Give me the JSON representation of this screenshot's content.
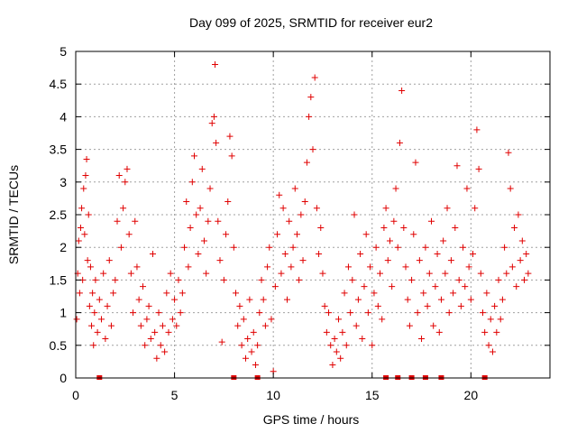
{
  "chart_data": {
    "type": "scatter",
    "title": "Day 099 of 2025, SRMTID for receiver eur2",
    "xlabel": "GPS time / hours",
    "ylabel": "SRMTID / TECUs",
    "xlim": [
      0,
      24
    ],
    "ylim": [
      0,
      5
    ],
    "xticks": [
      "0",
      "5",
      "10",
      "15",
      "20"
    ],
    "xtick_values": [
      0,
      5,
      10,
      15,
      20
    ],
    "yticks": [
      "0",
      "0.5",
      "1",
      "1.5",
      "2",
      "2.5",
      "3",
      "3.5",
      "4",
      "4.5",
      "5"
    ],
    "ytick_values": [
      0,
      0.5,
      1,
      1.5,
      2,
      2.5,
      3,
      3.5,
      4,
      4.5,
      5
    ],
    "grid": true,
    "marker": "plus",
    "color": "#e00000",
    "baseline_marks_x": [
      1.2,
      8.0,
      9.2,
      15.7,
      16.3,
      17.0,
      17.7,
      18.5,
      20.7
    ],
    "series": [
      {
        "name": "SRMTID",
        "points": [
          [
            0.05,
            0.9
          ],
          [
            0.1,
            1.6
          ],
          [
            0.15,
            2.1
          ],
          [
            0.2,
            1.3
          ],
          [
            0.25,
            2.3
          ],
          [
            0.3,
            2.6
          ],
          [
            0.35,
            1.5
          ],
          [
            0.4,
            2.9
          ],
          [
            0.45,
            2.2
          ],
          [
            0.5,
            3.1
          ],
          [
            0.55,
            3.35
          ],
          [
            0.6,
            1.8
          ],
          [
            0.65,
            2.5
          ],
          [
            0.7,
            1.1
          ],
          [
            0.75,
            1.7
          ],
          [
            0.8,
            0.8
          ],
          [
            0.85,
            1.3
          ],
          [
            0.9,
            0.5
          ],
          [
            0.95,
            1.0
          ],
          [
            1.0,
            1.5
          ],
          [
            1.1,
            0.7
          ],
          [
            1.2,
            1.2
          ],
          [
            1.3,
            0.9
          ],
          [
            1.4,
            1.6
          ],
          [
            1.5,
            0.6
          ],
          [
            1.6,
            1.1
          ],
          [
            1.7,
            1.8
          ],
          [
            1.8,
            0.8
          ],
          [
            1.9,
            1.3
          ],
          [
            2.0,
            1.5
          ],
          [
            2.1,
            2.4
          ],
          [
            2.2,
            3.1
          ],
          [
            2.3,
            2.0
          ],
          [
            2.4,
            2.6
          ],
          [
            2.5,
            3.0
          ],
          [
            2.6,
            3.2
          ],
          [
            2.7,
            2.2
          ],
          [
            2.8,
            1.6
          ],
          [
            2.9,
            1.0
          ],
          [
            3.0,
            2.4
          ],
          [
            3.1,
            1.7
          ],
          [
            3.2,
            1.2
          ],
          [
            3.3,
            0.8
          ],
          [
            3.4,
            1.4
          ],
          [
            3.5,
            0.5
          ],
          [
            3.6,
            0.9
          ],
          [
            3.7,
            1.1
          ],
          [
            3.8,
            0.6
          ],
          [
            3.9,
            1.9
          ],
          [
            4.0,
            0.7
          ],
          [
            4.1,
            0.3
          ],
          [
            4.2,
            1.0
          ],
          [
            4.3,
            0.5
          ],
          [
            4.4,
            0.8
          ],
          [
            4.5,
            0.4
          ],
          [
            4.6,
            1.3
          ],
          [
            4.7,
            0.7
          ],
          [
            4.8,
            1.6
          ],
          [
            4.9,
            0.9
          ],
          [
            5.0,
            1.2
          ],
          [
            5.1,
            0.8
          ],
          [
            5.2,
            1.5
          ],
          [
            5.3,
            1.0
          ],
          [
            5.4,
            1.3
          ],
          [
            5.5,
            2.0
          ],
          [
            5.6,
            2.7
          ],
          [
            5.7,
            1.7
          ],
          [
            5.8,
            2.3
          ],
          [
            5.9,
            3.0
          ],
          [
            6.0,
            3.4
          ],
          [
            6.1,
            2.5
          ],
          [
            6.2,
            1.9
          ],
          [
            6.3,
            2.6
          ],
          [
            6.4,
            3.2
          ],
          [
            6.5,
            2.1
          ],
          [
            6.6,
            1.6
          ],
          [
            6.7,
            2.4
          ],
          [
            6.8,
            2.9
          ],
          [
            6.9,
            3.9
          ],
          [
            7.0,
            4.0
          ],
          [
            7.05,
            4.8
          ],
          [
            7.1,
            3.6
          ],
          [
            7.2,
            2.4
          ],
          [
            7.3,
            1.8
          ],
          [
            7.4,
            0.55
          ],
          [
            7.5,
            1.5
          ],
          [
            7.6,
            2.2
          ],
          [
            7.7,
            2.7
          ],
          [
            7.8,
            3.7
          ],
          [
            7.9,
            3.4
          ],
          [
            8.0,
            2.0
          ],
          [
            8.1,
            1.3
          ],
          [
            8.2,
            0.8
          ],
          [
            8.3,
            1.1
          ],
          [
            8.4,
            0.5
          ],
          [
            8.5,
            0.9
          ],
          [
            8.6,
            0.3
          ],
          [
            8.7,
            0.6
          ],
          [
            8.8,
            1.2
          ],
          [
            8.9,
            0.4
          ],
          [
            9.0,
            0.7
          ],
          [
            9.1,
            0.2
          ],
          [
            9.2,
            0.5
          ],
          [
            9.3,
            1.0
          ],
          [
            9.4,
            1.5
          ],
          [
            9.5,
            1.2
          ],
          [
            9.6,
            0.8
          ],
          [
            9.7,
            1.7
          ],
          [
            9.8,
            2.0
          ],
          [
            9.9,
            0.9
          ],
          [
            10.0,
            0.1
          ],
          [
            10.1,
            1.4
          ],
          [
            10.2,
            2.2
          ],
          [
            10.3,
            2.8
          ],
          [
            10.4,
            1.6
          ],
          [
            10.5,
            2.6
          ],
          [
            10.6,
            1.9
          ],
          [
            10.7,
            1.2
          ],
          [
            10.8,
            2.4
          ],
          [
            10.9,
            1.7
          ],
          [
            11.0,
            2.0
          ],
          [
            11.1,
            2.9
          ],
          [
            11.2,
            2.2
          ],
          [
            11.3,
            1.5
          ],
          [
            11.4,
            2.5
          ],
          [
            11.5,
            1.8
          ],
          [
            11.6,
            2.7
          ],
          [
            11.7,
            3.3
          ],
          [
            11.8,
            4.0
          ],
          [
            11.9,
            4.3
          ],
          [
            12.0,
            3.5
          ],
          [
            12.1,
            4.6
          ],
          [
            12.2,
            2.6
          ],
          [
            12.3,
            1.9
          ],
          [
            12.4,
            2.3
          ],
          [
            12.5,
            1.6
          ],
          [
            12.6,
            1.1
          ],
          [
            12.7,
            0.7
          ],
          [
            12.8,
            1.0
          ],
          [
            12.9,
            0.5
          ],
          [
            13.0,
            0.2
          ],
          [
            13.1,
            0.6
          ],
          [
            13.2,
            0.4
          ],
          [
            13.3,
            0.9
          ],
          [
            13.4,
            0.3
          ],
          [
            13.5,
            0.7
          ],
          [
            13.6,
            1.3
          ],
          [
            13.7,
            0.5
          ],
          [
            13.8,
            1.7
          ],
          [
            13.9,
            1.0
          ],
          [
            14.0,
            1.5
          ],
          [
            14.1,
            2.5
          ],
          [
            14.2,
            0.8
          ],
          [
            14.3,
            1.2
          ],
          [
            14.4,
            1.9
          ],
          [
            14.5,
            0.6
          ],
          [
            14.6,
            1.4
          ],
          [
            14.7,
            2.2
          ],
          [
            14.8,
            1.0
          ],
          [
            14.9,
            1.7
          ],
          [
            15.0,
            0.5
          ],
          [
            15.1,
            1.3
          ],
          [
            15.2,
            2.0
          ],
          [
            15.3,
            1.1
          ],
          [
            15.4,
            1.6
          ],
          [
            15.5,
            0.9
          ],
          [
            15.6,
            2.3
          ],
          [
            15.7,
            2.6
          ],
          [
            15.8,
            1.8
          ],
          [
            15.9,
            2.1
          ],
          [
            16.0,
            1.4
          ],
          [
            16.1,
            2.4
          ],
          [
            16.2,
            2.9
          ],
          [
            16.3,
            2.0
          ],
          [
            16.4,
            3.6
          ],
          [
            16.5,
            4.4
          ],
          [
            16.6,
            2.3
          ],
          [
            16.7,
            1.7
          ],
          [
            16.8,
            1.2
          ],
          [
            16.9,
            0.8
          ],
          [
            17.0,
            1.5
          ],
          [
            17.1,
            2.2
          ],
          [
            17.2,
            3.3
          ],
          [
            17.3,
            1.0
          ],
          [
            17.4,
            1.8
          ],
          [
            17.5,
            0.6
          ],
          [
            17.6,
            1.3
          ],
          [
            17.7,
            2.0
          ],
          [
            17.8,
            1.1
          ],
          [
            17.9,
            1.6
          ],
          [
            18.0,
            2.4
          ],
          [
            18.1,
            0.8
          ],
          [
            18.2,
            1.4
          ],
          [
            18.3,
            1.9
          ],
          [
            18.4,
            0.7
          ],
          [
            18.5,
            1.2
          ],
          [
            18.6,
            2.1
          ],
          [
            18.7,
            1.6
          ],
          [
            18.8,
            2.6
          ],
          [
            18.9,
            1.0
          ],
          [
            19.0,
            1.8
          ],
          [
            19.1,
            1.3
          ],
          [
            19.2,
            2.3
          ],
          [
            19.3,
            3.25
          ],
          [
            19.4,
            1.5
          ],
          [
            19.5,
            1.1
          ],
          [
            19.6,
            2.0
          ],
          [
            19.7,
            1.4
          ],
          [
            19.8,
            2.9
          ],
          [
            19.9,
            1.7
          ],
          [
            20.0,
            1.2
          ],
          [
            20.1,
            1.9
          ],
          [
            20.2,
            2.6
          ],
          [
            20.3,
            3.8
          ],
          [
            20.4,
            3.2
          ],
          [
            20.5,
            1.6
          ],
          [
            20.6,
            1.0
          ],
          [
            20.7,
            0.7
          ],
          [
            20.8,
            1.3
          ],
          [
            20.9,
            0.5
          ],
          [
            21.0,
            0.9
          ],
          [
            21.1,
            0.4
          ],
          [
            21.2,
            1.1
          ],
          [
            21.3,
            0.7
          ],
          [
            21.4,
            1.5
          ],
          [
            21.5,
            0.9
          ],
          [
            21.6,
            1.2
          ],
          [
            21.7,
            2.0
          ],
          [
            21.8,
            1.6
          ],
          [
            21.9,
            3.45
          ],
          [
            22.0,
            2.9
          ],
          [
            22.1,
            1.7
          ],
          [
            22.2,
            2.3
          ],
          [
            22.3,
            1.4
          ],
          [
            22.4,
            2.5
          ],
          [
            22.5,
            1.8
          ],
          [
            22.6,
            2.1
          ],
          [
            22.7,
            1.5
          ],
          [
            22.8,
            1.9
          ],
          [
            22.9,
            1.6
          ]
        ]
      }
    ]
  }
}
